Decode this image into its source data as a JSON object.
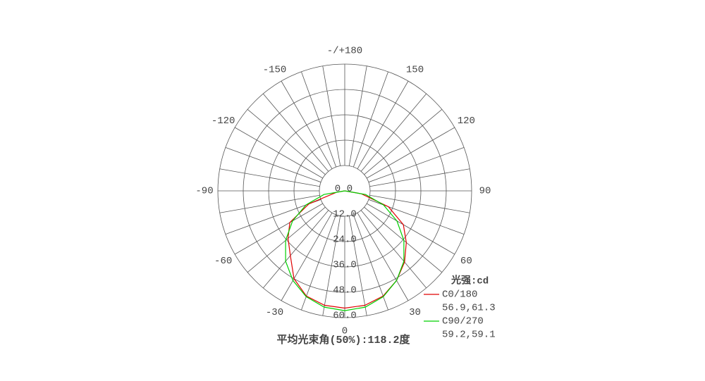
{
  "chart_data": {
    "type": "polar",
    "theta": [
      -90,
      -80,
      -70,
      -60,
      -50,
      -40,
      -30,
      -20,
      -10,
      0,
      10,
      20,
      30,
      40,
      50,
      60,
      70,
      80,
      90
    ],
    "series": [
      {
        "name": "C0/180",
        "color": "#e00000",
        "stats": "56.9,61.3",
        "values": [
          0,
          4,
          18,
          30,
          35,
          40,
          48,
          53,
          55,
          55.5,
          55,
          53,
          49,
          44,
          38,
          32,
          22,
          8,
          0
        ]
      },
      {
        "name": "C90/270",
        "color": "#00d000",
        "stats": "59.2,59.1",
        "values": [
          0,
          10,
          19.5,
          28.5,
          36.5,
          43.5,
          49,
          53.3,
          55.9,
          56.7,
          55.9,
          53.3,
          49,
          43.5,
          36.5,
          28.5,
          19.5,
          10,
          0
        ]
      }
    ],
    "rlim": [
      0,
      60
    ],
    "rticks": [
      {
        "value": 12,
        "label": "12.0"
      },
      {
        "value": 24,
        "label": "24.0"
      },
      {
        "value": 36,
        "label": "36.0"
      },
      {
        "value": 48,
        "label": "48.0"
      },
      {
        "value": 60,
        "label": "60.0"
      }
    ],
    "center_labels": [
      "0",
      "0"
    ],
    "angle_ticks": [
      0,
      30,
      60,
      90,
      120,
      150,
      {
        "value": 180,
        "label": "-/+180"
      },
      -150,
      -120,
      -90,
      -60,
      -30
    ],
    "angle_grid_step": 10,
    "legend_title": "光强:cd",
    "footer": "平均光束角(50%):118.2度"
  }
}
